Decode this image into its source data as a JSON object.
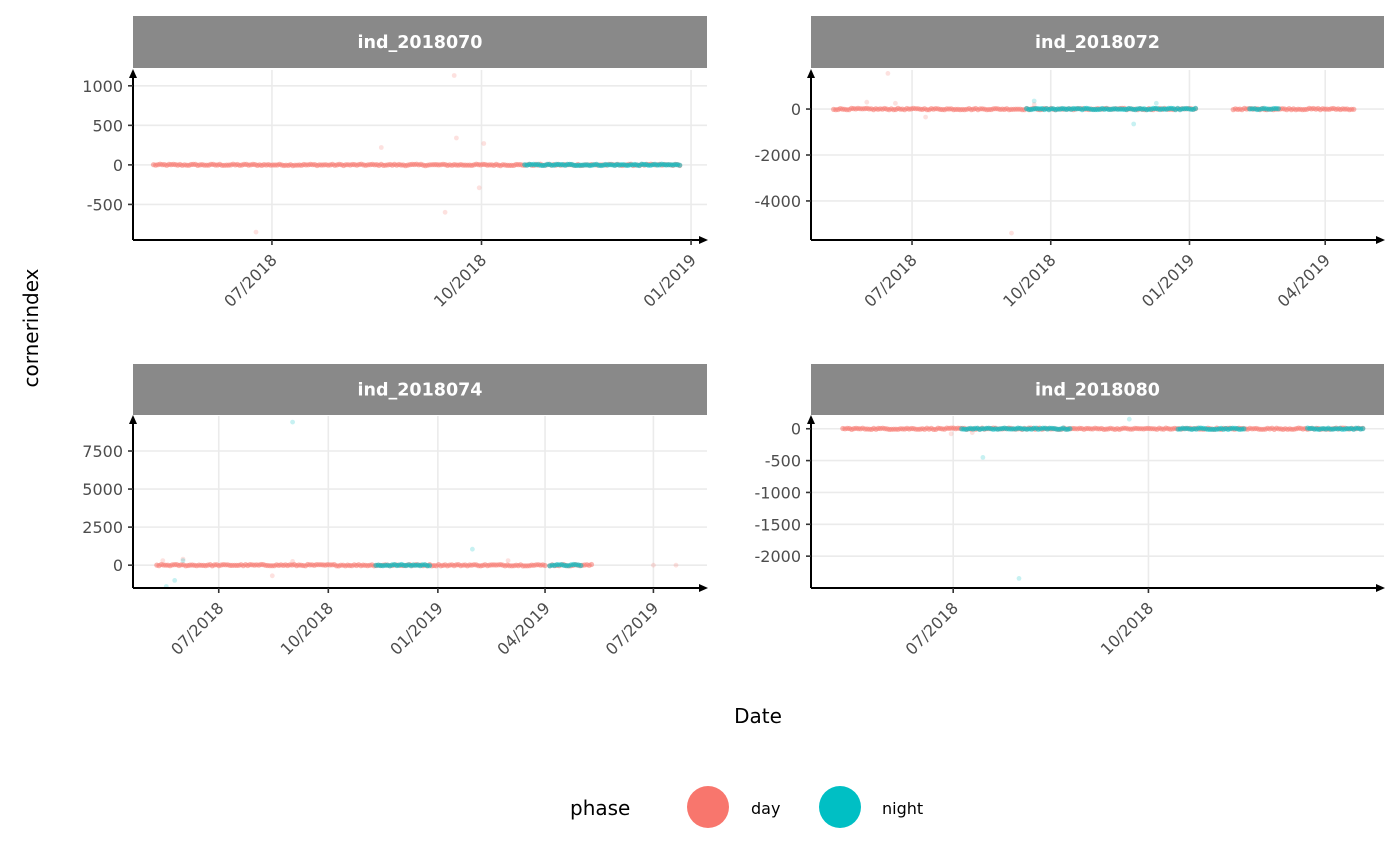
{
  "chart_data": {
    "type": "scatter",
    "facet_by": "individual",
    "xlabel": "Date",
    "ylabel": "cornerindex",
    "legend": {
      "title": "phase",
      "position": "bottom",
      "entries": [
        {
          "label": "day",
          "color": "#F8766D"
        },
        {
          "label": "night",
          "color": "#00BFC4"
        }
      ]
    },
    "grid": true,
    "panels": [
      {
        "name": "ind_2018070",
        "xlim": [
          "2018-05-01",
          "2019-01-08"
        ],
        "ylim": [
          -950,
          1200
        ],
        "x_ticks": [
          {
            "date": "2018-07-01",
            "label": "07/2018"
          },
          {
            "date": "2018-10-01",
            "label": "10/2018"
          },
          {
            "date": "2019-01-01",
            "label": "01/2019"
          }
        ],
        "y_ticks": [
          {
            "value": 1000,
            "label": "1000"
          },
          {
            "value": 500,
            "label": "500"
          },
          {
            "value": 0,
            "label": "0"
          },
          {
            "value": -500,
            "label": "-500"
          }
        ],
        "series": [
          {
            "phase": "day",
            "start": "2018-05-10",
            "end": "2018-12-27",
            "level": 0,
            "segments": [
              [
                "2018-05-10",
                "2018-12-27"
              ]
            ],
            "outliers": [
              [
                "2018-06-24",
                -850
              ],
              [
                "2018-08-18",
                220
              ],
              [
                "2018-09-19",
                1130
              ],
              [
                "2018-09-20",
                340
              ],
              [
                "2018-09-15",
                -600
              ],
              [
                "2018-09-30",
                -290
              ],
              [
                "2018-10-02",
                270
              ]
            ]
          },
          {
            "phase": "night",
            "start": "2018-05-10",
            "end": "2018-12-27",
            "level": 0,
            "segments": [
              [
                "2018-10-20",
                "2018-12-27"
              ]
            ],
            "outliers": []
          }
        ]
      },
      {
        "name": "ind_2018072",
        "xlim": [
          "2018-04-25",
          "2019-05-10"
        ],
        "ylim": [
          -5700,
          1700
        ],
        "x_ticks": [
          {
            "date": "2018-07-01",
            "label": "07/2018"
          },
          {
            "date": "2018-10-01",
            "label": "10/2018"
          },
          {
            "date": "2019-01-01",
            "label": "01/2019"
          },
          {
            "date": "2019-04-01",
            "label": "04/2019"
          }
        ],
        "y_ticks": [
          {
            "value": 0,
            "label": "0"
          },
          {
            "value": -2000,
            "label": "-2000"
          },
          {
            "value": -4000,
            "label": "-4000"
          }
        ],
        "series": [
          {
            "phase": "day",
            "level": 0,
            "segments": [
              [
                "2018-05-10",
                "2019-01-05"
              ],
              [
                "2019-01-30",
                "2019-04-20"
              ]
            ],
            "outliers": [
              [
                "2018-06-15",
                1550
              ],
              [
                "2018-06-01",
                300
              ],
              [
                "2018-06-20",
                250
              ],
              [
                "2018-09-05",
                -5400
              ],
              [
                "2018-07-10",
                -350
              ],
              [
                "2018-09-20",
                200
              ]
            ]
          },
          {
            "phase": "night",
            "level": 0,
            "segments": [
              [
                "2018-09-15",
                "2019-01-05"
              ],
              [
                "2019-02-10",
                "2019-03-01"
              ]
            ],
            "outliers": [
              [
                "2018-11-25",
                -650
              ],
              [
                "2018-09-20",
                350
              ],
              [
                "2018-12-10",
                250
              ]
            ]
          }
        ]
      },
      {
        "name": "ind_2018074",
        "xlim": [
          "2018-04-20",
          "2019-08-15"
        ],
        "ylim": [
          -1500,
          9800
        ],
        "x_ticks": [
          {
            "date": "2018-07-01",
            "label": "07/2018"
          },
          {
            "date": "2018-10-01",
            "label": "10/2018"
          },
          {
            "date": "2019-01-01",
            "label": "01/2019"
          },
          {
            "date": "2019-04-01",
            "label": "04/2019"
          },
          {
            "date": "2019-07-01",
            "label": "07/2019"
          }
        ],
        "y_ticks": [
          {
            "value": 7500,
            "label": "7500"
          },
          {
            "value": 5000,
            "label": "5000"
          },
          {
            "value": 2500,
            "label": "2500"
          },
          {
            "value": 0,
            "label": "0"
          }
        ],
        "series": [
          {
            "phase": "day",
            "level": 0,
            "segments": [
              [
                "2018-05-10",
                "2019-04-01"
              ],
              [
                "2019-04-05",
                "2019-05-10"
              ]
            ],
            "outliers": [
              [
                "2018-06-01",
                400
              ],
              [
                "2018-08-15",
                -700
              ],
              [
                "2019-03-01",
                300
              ],
              [
                "2019-07-01",
                0
              ],
              [
                "2019-07-20",
                0
              ],
              [
                "2018-05-15",
                300
              ],
              [
                "2018-09-01",
                250
              ]
            ]
          },
          {
            "phase": "night",
            "level": 0,
            "segments": [
              [
                "2018-11-10",
                "2018-12-25"
              ],
              [
                "2019-04-05",
                "2019-05-01"
              ]
            ],
            "outliers": [
              [
                "2018-09-01",
                9400
              ],
              [
                "2018-05-18",
                -1400
              ],
              [
                "2018-05-25",
                -1000
              ],
              [
                "2019-01-30",
                1050
              ],
              [
                "2018-06-01",
                300
              ]
            ]
          }
        ]
      },
      {
        "name": "ind_2018080",
        "xlim": [
          "2018-04-25",
          "2019-01-20"
        ],
        "ylim": [
          -2500,
          200
        ],
        "x_ticks": [
          {
            "date": "2018-07-01",
            "label": "07/2018"
          },
          {
            "date": "2018-10-01",
            "label": "10/2018"
          }
        ],
        "y_ticks": [
          {
            "value": 0,
            "label": "0"
          },
          {
            "value": -500,
            "label": "-500"
          },
          {
            "value": -1000,
            "label": "-1000"
          },
          {
            "value": -1500,
            "label": "-1500"
          },
          {
            "value": -2000,
            "label": "-2000"
          }
        ],
        "series": [
          {
            "phase": "day",
            "level": 0,
            "segments": [
              [
                "2018-05-10",
                "2019-01-10"
              ]
            ],
            "outliers": [
              [
                "2018-06-30",
                -80
              ],
              [
                "2018-07-10",
                -60
              ]
            ]
          },
          {
            "phase": "night",
            "level": 0,
            "segments": [
              [
                "2018-07-05",
                "2018-08-25"
              ],
              [
                "2018-10-15",
                "2018-11-15"
              ],
              [
                "2018-12-15",
                "2019-01-10"
              ]
            ],
            "outliers": [
              [
                "2018-07-15",
                -450
              ],
              [
                "2018-08-01",
                -2350
              ],
              [
                "2018-09-22",
                150
              ]
            ]
          }
        ]
      }
    ]
  }
}
